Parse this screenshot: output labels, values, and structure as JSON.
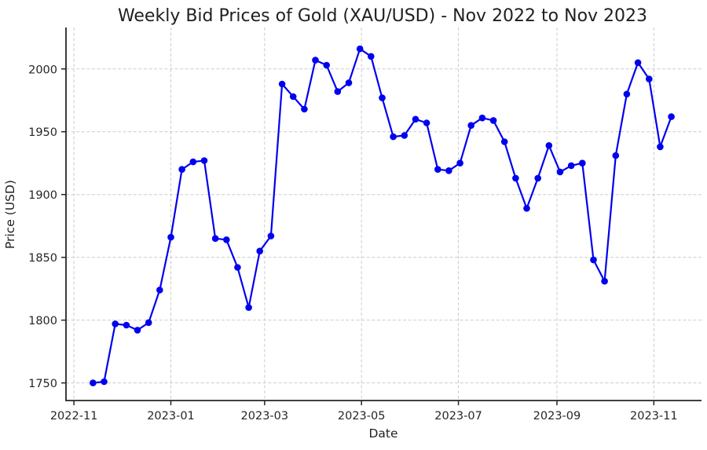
{
  "chart_data": {
    "type": "line",
    "title": "Weekly Bid Prices of Gold (XAU/USD) - Nov 2022 to Nov 2023",
    "xlabel": "Date",
    "ylabel": "Price (USD)",
    "series_name": "XAU/USD weekly bid price",
    "legend": "none",
    "grid": true,
    "line_color": "#0000f0",
    "marker": "circle",
    "background": "#ffffff",
    "grid_color": "#cccccc",
    "spine_color": "#262626",
    "ylim": [
      1736,
      2033
    ],
    "xlim_dates": [
      "2022-10-27",
      "2023-12-01"
    ],
    "y_ticks": [
      1750,
      1800,
      1850,
      1900,
      1950,
      2000
    ],
    "x_ticks": [
      "2022-11",
      "2023-01",
      "2023-03",
      "2023-05",
      "2023-07",
      "2023-09",
      "2023-11"
    ],
    "dates": [
      "2022-11-13",
      "2022-11-20",
      "2022-11-27",
      "2022-12-04",
      "2022-12-11",
      "2022-12-18",
      "2022-12-25",
      "2023-01-01",
      "2023-01-08",
      "2023-01-15",
      "2023-01-22",
      "2023-01-29",
      "2023-02-05",
      "2023-02-12",
      "2023-02-19",
      "2023-02-26",
      "2023-03-05",
      "2023-03-12",
      "2023-03-19",
      "2023-03-26",
      "2023-04-02",
      "2023-04-09",
      "2023-04-16",
      "2023-04-23",
      "2023-04-30",
      "2023-05-07",
      "2023-05-14",
      "2023-05-21",
      "2023-05-28",
      "2023-06-04",
      "2023-06-11",
      "2023-06-18",
      "2023-06-25",
      "2023-07-02",
      "2023-07-09",
      "2023-07-16",
      "2023-07-23",
      "2023-07-30",
      "2023-08-06",
      "2023-08-13",
      "2023-08-20",
      "2023-08-27",
      "2023-09-03",
      "2023-09-10",
      "2023-09-17",
      "2023-09-24",
      "2023-10-01",
      "2023-10-08",
      "2023-10-15",
      "2023-10-22",
      "2023-10-29",
      "2023-11-05",
      "2023-11-12"
    ],
    "values": [
      1750,
      1751,
      1797,
      1796,
      1792,
      1798,
      1824,
      1866,
      1920,
      1926,
      1927,
      1865,
      1864,
      1842,
      1810,
      1855,
      1867,
      1988,
      1978,
      1968,
      2007,
      2003,
      1982,
      1989,
      2016,
      2010,
      1977,
      1946,
      1947,
      1960,
      1957,
      1920,
      1919,
      1925,
      1955,
      1961,
      1959,
      1942,
      1913,
      1889,
      1913,
      1939,
      1918,
      1923,
      1925,
      1848,
      1831,
      1931,
      1980,
      2005,
      1992,
      1938,
      1962
    ]
  }
}
